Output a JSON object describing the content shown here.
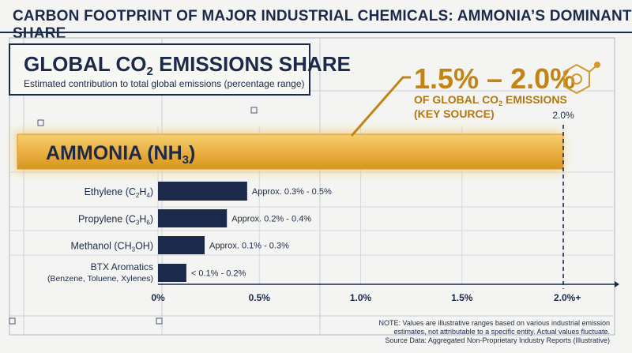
{
  "page_title": "CARBON FOOTPRINT OF MAJOR INDUSTRIAL CHEMICALS: AMMONIA’S DOMINANT SHARE",
  "title_box": {
    "heading_a": "GLOBAL CO",
    "heading_sub": "2",
    "heading_b": " EMISSIONS SHARE",
    "subtitle": "Estimated contribution to total global emissions (percentage range)"
  },
  "callout": {
    "headline": "1.5% – 2.0%",
    "line1_a": "OF GLOBAL CO",
    "line1_sub": "2",
    "line1_b": " EMISSIONS",
    "line2": "(KEY SOURCE)"
  },
  "max_marker_label": "2.0%",
  "colors": {
    "navy": "#1b2a4a",
    "gold": "#e6a92f",
    "gold_dark": "#b27712",
    "background": "#f4f5f2"
  },
  "chart_data": {
    "type": "bar",
    "orientation": "horizontal",
    "xlim": [
      0,
      2.0
    ],
    "x_ticks": [
      "0%",
      "0.5%",
      "1.0%",
      "1.5%",
      "2.0%+"
    ],
    "bars": [
      {
        "label_a": "AMMONIA (NH",
        "label_sub": "3",
        "label_b": ")",
        "value": 2.0,
        "range": [
          1.5,
          2.0
        ],
        "highlight": true
      },
      {
        "label_a": "Ethylene (C",
        "label_sub1": "2",
        "label_mid": "H",
        "label_sub2": "4",
        "label_b": ")",
        "value": 0.44,
        "range": [
          0.3,
          0.5
        ],
        "data_label": "Approx. 0.3% - 0.5%"
      },
      {
        "label_a": "Propylene (C",
        "label_sub1": "3",
        "label_mid": "H",
        "label_sub2": "6",
        "label_b": ")",
        "value": 0.34,
        "range": [
          0.2,
          0.4
        ],
        "data_label": "Approx. 0.2% - 0.4%"
      },
      {
        "label_a": "Methanol (CH",
        "label_sub1": "3",
        "label_mid": "OH",
        "label_sub2": "",
        "label_b": ")",
        "value": 0.23,
        "range": [
          0.1,
          0.3
        ],
        "data_label": "Approx. 0.1% - 0.3%"
      },
      {
        "label_a": "BTX Aromatics",
        "label_line2": "(Benzene, Toluene, Xylenes)",
        "value": 0.14,
        "range": [
          0,
          0.2
        ],
        "data_label": "< 0.1% - 0.2%"
      }
    ]
  },
  "note": {
    "line1": "NOTE: Values are illustrative ranges based on various industrial emission",
    "line2": "estimates, not attributable to a specific entity. Actual values fluctuate.",
    "line3": "Source Data: Aggregated Non-Proprietary Industry Reports (Illustrative)"
  }
}
